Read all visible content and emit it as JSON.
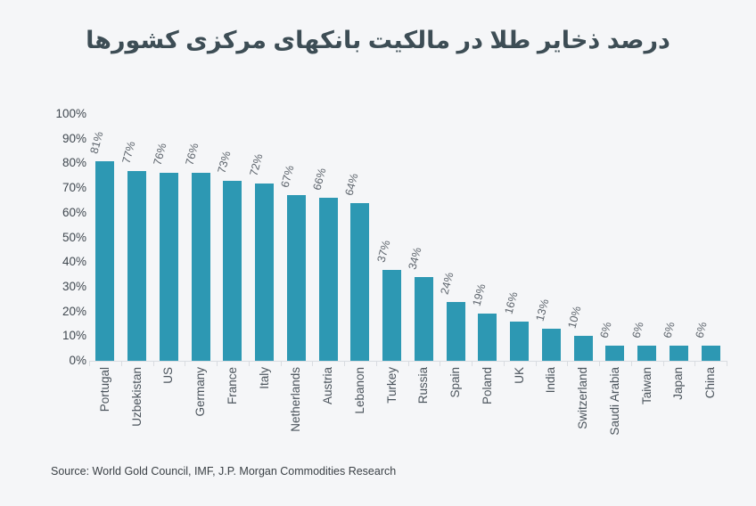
{
  "title": "درصد ذخایر طلا در مالکیت بانکهای مرکزی کشورها",
  "source": "Source: World Gold Council, IMF, J.P. Morgan Commodities Research",
  "colors": {
    "background": "#f5f6f8",
    "bar": "#2d98b3",
    "title_text": "#3d4d55",
    "axis_line": "#d9dce1",
    "y_tick_text": "#3f474f",
    "value_label_text": "#5d646c",
    "category_text": "#4b545c",
    "source_text": "#3a4045"
  },
  "chart_data": {
    "type": "bar",
    "title": "درصد ذخایر طلا در مالکیت بانکهای مرکزی کشورها",
    "categories": [
      "Portugal",
      "Uzbekistan",
      "US",
      "Germany",
      "France",
      "Italy",
      "Netherlands",
      "Austria",
      "Lebanon",
      "Turkey",
      "Russia",
      "Spain",
      "Poland",
      "UK",
      "India",
      "Switzerland",
      "Saudi Arabia",
      "Taiwan",
      "Japan",
      "China"
    ],
    "values": [
      81,
      77,
      76,
      76,
      73,
      72,
      67,
      66,
      64,
      37,
      34,
      24,
      19,
      16,
      13,
      10,
      6,
      6,
      6,
      6
    ],
    "value_labels": [
      "81%",
      "77%",
      "76%",
      "76%",
      "73%",
      "72%",
      "67%",
      "66%",
      "64%",
      "37%",
      "34%",
      "24%",
      "19%",
      "16%",
      "13%",
      "10%",
      "6%",
      "6%",
      "6%",
      "6%"
    ],
    "xlabel": "",
    "ylabel": "",
    "ylim": [
      0,
      100
    ],
    "yticks": [
      "0%",
      "10%",
      "20%",
      "30%",
      "40%",
      "50%",
      "60%",
      "70%",
      "80%",
      "90%",
      "100%"
    ],
    "grid": "off",
    "legend": "none",
    "bar_label_rotation_deg": -75,
    "category_rotation_deg": -90
  }
}
